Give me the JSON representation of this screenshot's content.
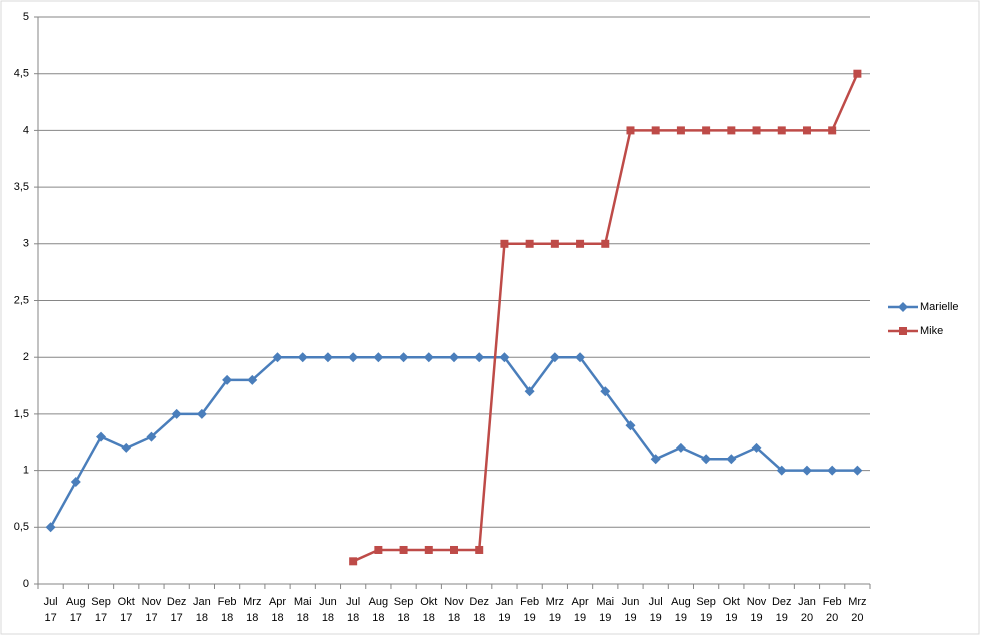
{
  "chart_data": {
    "type": "line",
    "categories": [
      "Jul 17",
      "Aug 17",
      "Sep 17",
      "Okt 17",
      "Nov 17",
      "Dez 17",
      "Jan 18",
      "Feb 18",
      "Mrz 18",
      "Apr 18",
      "Mai 18",
      "Jun 18",
      "Jul 18",
      "Aug 18",
      "Sep 18",
      "Okt 18",
      "Nov 18",
      "Dez 18",
      "Jan 19",
      "Feb 19",
      "Mrz 19",
      "Apr 19",
      "Mai 19",
      "Jun 19",
      "Jul 19",
      "Aug 19",
      "Sep 19",
      "Okt 19",
      "Nov 19",
      "Dez 19",
      "Jan 20",
      "Feb 20",
      "Mrz 20"
    ],
    "series": [
      {
        "name": "Marielle",
        "color": "#4a7ebb",
        "marker": "diamond",
        "values": [
          0.5,
          0.9,
          1.3,
          1.2,
          1.3,
          1.5,
          1.5,
          1.8,
          1.8,
          2,
          2,
          2,
          2,
          2,
          2,
          2,
          2,
          2,
          2,
          1.7,
          2,
          2,
          1.7,
          1.4,
          1.1,
          1.2,
          1.1,
          1.1,
          1.2,
          1,
          1,
          1,
          1
        ]
      },
      {
        "name": "Mike",
        "color": "#be4b48",
        "marker": "square",
        "values": [
          null,
          null,
          null,
          null,
          null,
          null,
          null,
          null,
          null,
          null,
          null,
          null,
          0.2,
          0.3,
          0.3,
          0.3,
          0.3,
          0.3,
          3,
          3,
          3,
          3,
          3,
          4,
          4,
          4,
          4,
          4,
          4,
          4,
          4,
          4,
          4.5
        ]
      }
    ],
    "ylim": [
      0,
      5
    ],
    "yticks": [
      0,
      {
        "value": 0.5,
        "label": "0,5"
      },
      1,
      {
        "value": 1.5,
        "label": "1,5"
      },
      2,
      {
        "value": 2.5,
        "label": "2,5"
      },
      3,
      {
        "value": 3.5,
        "label": "3,5"
      },
      4,
      {
        "value": 4.5,
        "label": "4,5"
      },
      5
    ],
    "grid": true,
    "legend": "right"
  }
}
